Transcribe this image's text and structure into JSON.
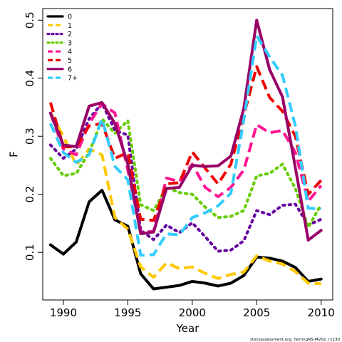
{
  "chart_data": {
    "type": "line",
    "xlabel": "Year",
    "ylabel": "F",
    "xlim": [
      1988.4,
      2010.9
    ],
    "ylim": [
      0.018,
      0.52
    ],
    "xticks": [
      1990,
      1995,
      2000,
      2005,
      2010
    ],
    "yticks": [
      0.1,
      0.2,
      0.3,
      0.4,
      0.5
    ],
    "legend_position": "top-left",
    "footnote": "stockassessment.org, herringNS-MV02, r1130",
    "x": [
      1989,
      1990,
      1991,
      1992,
      1993,
      1994,
      1995,
      1996,
      1997,
      1998,
      1999,
      2000,
      2001,
      2002,
      2003,
      2004,
      2005,
      2006,
      2007,
      2008,
      2009,
      2010
    ],
    "series": [
      {
        "name": "0",
        "color": "#000000",
        "dash": "solid",
        "values": [
          0.113,
          0.097,
          0.118,
          0.187,
          0.207,
          0.156,
          0.145,
          0.063,
          0.037,
          0.04,
          0.043,
          0.05,
          0.047,
          0.042,
          0.047,
          0.06,
          0.092,
          0.09,
          0.085,
          0.074,
          0.05,
          0.054
        ]
      },
      {
        "name": "1",
        "color": "#FFC800",
        "dash": "long",
        "values": [
          0.34,
          0.3,
          0.25,
          0.278,
          0.268,
          0.16,
          0.14,
          0.075,
          0.057,
          0.082,
          0.072,
          0.075,
          0.064,
          0.055,
          0.062,
          0.066,
          0.094,
          0.085,
          0.08,
          0.067,
          0.047,
          0.046
        ]
      },
      {
        "name": "2",
        "color": "#6600A0",
        "dash": "dot",
        "values": [
          0.285,
          0.262,
          0.278,
          0.33,
          0.357,
          0.31,
          0.302,
          0.138,
          0.122,
          0.147,
          0.134,
          0.151,
          0.127,
          0.102,
          0.104,
          0.12,
          0.172,
          0.165,
          0.181,
          0.183,
          0.147,
          0.157
        ]
      },
      {
        "name": "3",
        "color": "#66CC00",
        "dash": "dot",
        "values": [
          0.262,
          0.232,
          0.236,
          0.272,
          0.33,
          0.305,
          0.327,
          0.182,
          0.172,
          0.212,
          0.203,
          0.2,
          0.178,
          0.16,
          0.162,
          0.172,
          0.232,
          0.236,
          0.252,
          0.21,
          0.143,
          0.183
        ]
      },
      {
        "name": "4",
        "color": "#FF1493",
        "dash": "long",
        "values": [
          0.34,
          0.278,
          0.268,
          0.322,
          0.356,
          0.34,
          0.242,
          0.135,
          0.136,
          0.228,
          0.222,
          0.252,
          0.212,
          0.196,
          0.212,
          0.242,
          0.32,
          0.306,
          0.31,
          0.272,
          0.188,
          0.215
        ]
      },
      {
        "name": "5",
        "color": "#EE0000",
        "dash": "long",
        "values": [
          0.358,
          0.282,
          0.282,
          0.318,
          0.322,
          0.262,
          0.272,
          0.157,
          0.155,
          0.218,
          0.22,
          0.273,
          0.245,
          0.218,
          0.252,
          0.336,
          0.42,
          0.367,
          0.343,
          0.3,
          0.2,
          0.224
        ]
      },
      {
        "name": "6",
        "color": "#990066",
        "dash": "solid",
        "values": [
          0.34,
          0.285,
          0.282,
          0.352,
          0.358,
          0.322,
          0.252,
          0.132,
          0.135,
          0.21,
          0.212,
          0.25,
          0.248,
          0.249,
          0.266,
          0.348,
          0.5,
          0.415,
          0.368,
          0.246,
          0.121,
          0.138
        ]
      },
      {
        "name": "7+",
        "color": "#33CCFF",
        "dash": "long",
        "values": [
          0.322,
          0.272,
          0.255,
          0.268,
          0.33,
          0.248,
          0.225,
          0.095,
          0.096,
          0.132,
          0.13,
          0.16,
          0.168,
          0.18,
          0.202,
          0.328,
          0.473,
          0.437,
          0.405,
          0.318,
          0.176,
          0.175
        ]
      }
    ]
  }
}
